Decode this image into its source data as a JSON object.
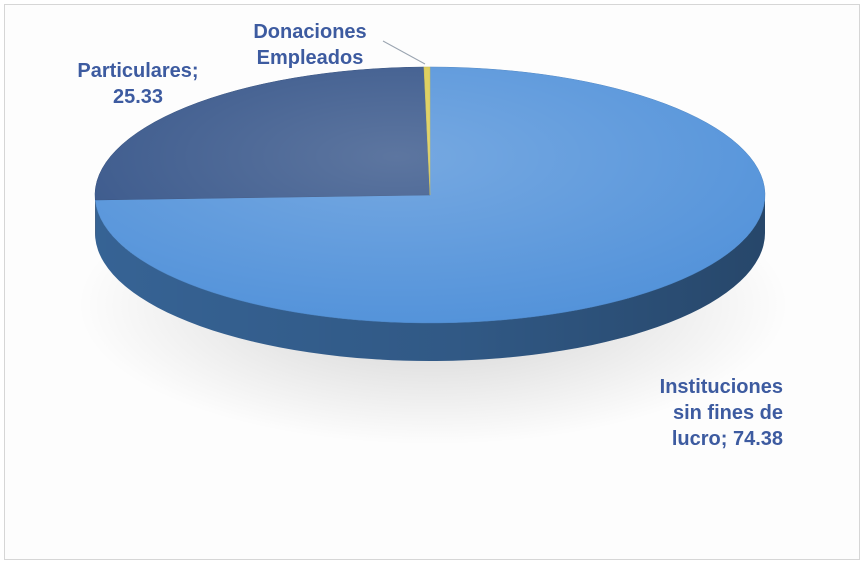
{
  "chart_data": {
    "type": "pie",
    "title": "",
    "slices": [
      {
        "label": "Instituciones sin fines de lucro",
        "value": 74.38,
        "color": "#4f90d9",
        "label_lines": [
          "Instituciones",
          "sin fines de",
          "lucro;  74.38"
        ]
      },
      {
        "label": "Particulares",
        "value": 25.33,
        "color": "#2f4f85",
        "label_lines": [
          "Particulares;",
          "25.33"
        ]
      },
      {
        "label": "Donaciones Empleados",
        "value": 0.29,
        "color": "#d9c94a",
        "label_lines": [
          "Donaciones",
          "Empleados"
        ]
      }
    ],
    "legend": "none",
    "style": "3d"
  }
}
